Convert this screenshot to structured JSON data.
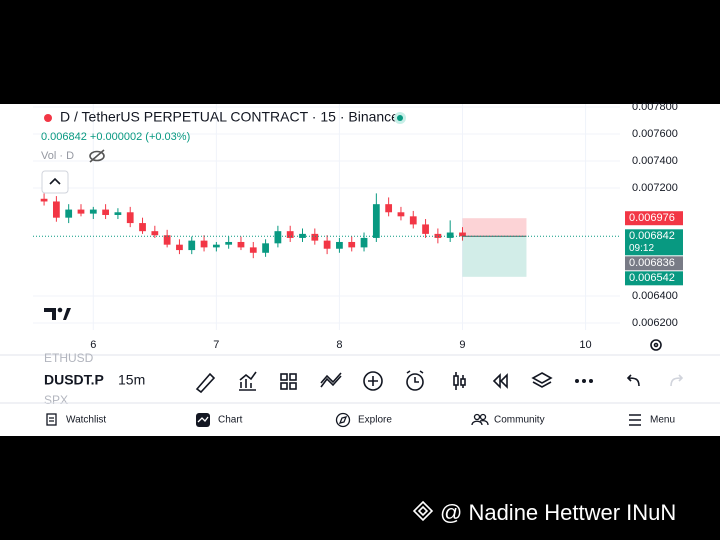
{
  "header": {
    "title": "D / TetherUS PERPETUAL CONTRACT · 15 · Binance",
    "quote": "0.006842 +0.000002 (+0.03%)",
    "volume": "Vol · D"
  },
  "chart_data": {
    "type": "candlestick",
    "x": [
      5.6,
      5.7,
      5.8,
      5.9,
      6.0,
      6.1,
      6.2,
      6.3,
      6.4,
      6.5,
      6.6,
      6.7,
      6.8,
      6.9,
      7.0,
      7.1,
      7.2,
      7.3,
      7.4,
      7.5,
      7.6,
      7.7,
      7.8,
      7.9,
      8.0,
      8.1,
      8.2,
      8.3,
      8.4,
      8.5,
      8.6,
      8.7,
      8.8,
      8.9,
      9.0
    ],
    "open": [
      0.00712,
      0.0071,
      0.00698,
      0.00704,
      0.00701,
      0.00704,
      0.007,
      0.00702,
      0.00694,
      0.00688,
      0.00685,
      0.00678,
      0.00674,
      0.00681,
      0.00676,
      0.00678,
      0.0068,
      0.00676,
      0.00672,
      0.00679,
      0.00688,
      0.00683,
      0.00686,
      0.00681,
      0.00675,
      0.0068,
      0.00676,
      0.00683,
      0.00708,
      0.00702,
      0.00699,
      0.00693,
      0.00686,
      0.00683,
      0.00687
    ],
    "high": [
      0.00716,
      0.00714,
      0.00708,
      0.00708,
      0.00706,
      0.00708,
      0.00705,
      0.00706,
      0.00698,
      0.00692,
      0.00689,
      0.00682,
      0.00684,
      0.00685,
      0.0068,
      0.00684,
      0.00684,
      0.0068,
      0.00682,
      0.00692,
      0.00692,
      0.0069,
      0.0069,
      0.00685,
      0.00683,
      0.00684,
      0.00687,
      0.00716,
      0.00713,
      0.00706,
      0.00703,
      0.00697,
      0.0069,
      0.00696,
      0.00691
    ],
    "low": [
      0.00707,
      0.00695,
      0.00694,
      0.00699,
      0.00697,
      0.00697,
      0.00697,
      0.00691,
      0.00686,
      0.00683,
      0.00676,
      0.00671,
      0.00671,
      0.00673,
      0.00673,
      0.00675,
      0.00674,
      0.00668,
      0.00669,
      0.00676,
      0.0068,
      0.0068,
      0.00678,
      0.00671,
      0.00672,
      0.00673,
      0.00673,
      0.0068,
      0.00699,
      0.00696,
      0.0069,
      0.00683,
      0.00679,
      0.0068,
      0.00681
    ],
    "close": [
      0.0071,
      0.00698,
      0.00704,
      0.00701,
      0.00704,
      0.007,
      0.00702,
      0.00694,
      0.00688,
      0.00685,
      0.00678,
      0.00674,
      0.00681,
      0.00676,
      0.00678,
      0.0068,
      0.00676,
      0.00672,
      0.00679,
      0.00688,
      0.00683,
      0.00686,
      0.00681,
      0.00675,
      0.0068,
      0.00676,
      0.00683,
      0.00708,
      0.00702,
      0.00699,
      0.00693,
      0.00686,
      0.00683,
      0.00687,
      0.006842
    ],
    "up_color": "#089981",
    "down_color": "#f23645",
    "xlim": [
      5.51,
      10.28
    ],
    "xticks": [
      6,
      7,
      8,
      9,
      10
    ],
    "ylim": [
      0.006148,
      0.007822
    ],
    "yticks": [
      {
        "value": 0.0078,
        "label": "0.007800"
      },
      {
        "value": 0.0076,
        "label": "0.007600"
      },
      {
        "value": 0.0074,
        "label": "0.007400"
      },
      {
        "value": 0.0072,
        "label": "0.007200"
      },
      {
        "value": 0.0064,
        "label": "0.006400"
      },
      {
        "value": 0.0062,
        "label": "0.006200"
      }
    ],
    "grid": true,
    "position_x": [
      9.0,
      9.52
    ],
    "price_labels": [
      {
        "value": 0.006976,
        "color": "#f23645"
      },
      {
        "value": 0.006842,
        "color": "#089981",
        "countdown": "09:12"
      },
      {
        "value": 0.006836,
        "color": "#787b86"
      },
      {
        "value": 0.006542,
        "color": "#089981"
      }
    ]
  },
  "toolbar": {
    "prev_symbol": "ETHUSD",
    "symbol": "DUSDT.P",
    "interval": "15m",
    "next_symbol": "SPX"
  },
  "nav": [
    "Watchlist",
    "Chart",
    "Explore",
    "Community",
    "Menu"
  ],
  "watermark": "@ Nadine Hettwer INuN"
}
